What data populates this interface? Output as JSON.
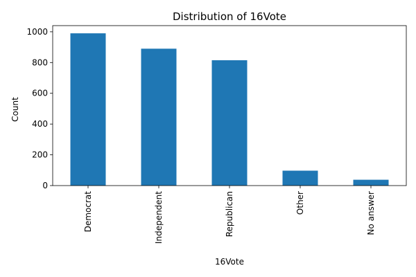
{
  "chart_data": {
    "type": "bar",
    "title": "Distribution of 16Vote",
    "xlabel": "16Vote",
    "ylabel": "Count",
    "categories": [
      "Democrat",
      "Independent",
      "Republican",
      "Other",
      "No answer"
    ],
    "values": [
      990,
      890,
      815,
      97,
      38
    ],
    "ylim": [
      0,
      1040
    ],
    "yticks": [
      0,
      200,
      400,
      600,
      800,
      1000
    ],
    "bar_color": "#1f77b4",
    "grid": false,
    "legend": "none"
  }
}
